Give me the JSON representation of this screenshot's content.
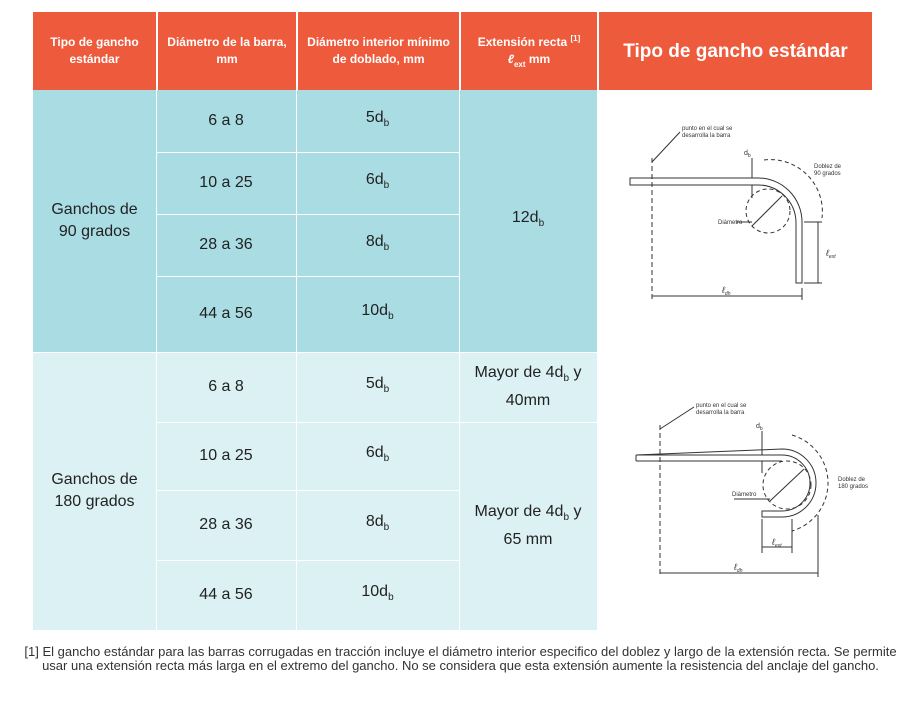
{
  "header": {
    "col1": "Tipo de gancho estándar",
    "col2": "Diámetro de la barra, mm",
    "col3": "Diámetro interior mínimo de doblado, mm",
    "col4_text": "Extensión recta",
    "col4_note": "[1]",
    "col4_sym": "ℓ",
    "col4_sub": "ext",
    "col4_unit": "mm",
    "col5": "Tipo de gancho estándar"
  },
  "groups": [
    {
      "label": "Ganchos de 90 grados",
      "rows": [
        {
          "bar": "6 a 8",
          "coef": "5",
          "sym": "d",
          "sub": "b"
        },
        {
          "bar": "10 a 25",
          "coef": "6",
          "sym": "d",
          "sub": "b"
        },
        {
          "bar": "28 a 36",
          "coef": "8",
          "sym": "d",
          "sub": "b"
        },
        {
          "bar": "44 a 56",
          "coef": "10",
          "sym": "d",
          "sub": "b"
        }
      ],
      "extension": {
        "pre": "12d",
        "sub": "b",
        "post": ""
      }
    },
    {
      "label": "Ganchos de 180 grados",
      "rows": [
        {
          "bar": "6 a 8",
          "coef": "5",
          "sym": "d",
          "sub": "b"
        },
        {
          "bar": "10 a 25",
          "coef": "6",
          "sym": "d",
          "sub": "b"
        },
        {
          "bar": "28 a 36",
          "coef": "8",
          "sym": "d",
          "sub": "b"
        },
        {
          "bar": "44 a 56",
          "coef": "10",
          "sym": "d",
          "sub": "b"
        }
      ],
      "extension_a": {
        "pre": "Mayor de 4d",
        "sub": "b",
        "post": " y 40mm"
      },
      "extension_b": {
        "pre": "Mayor de 4d",
        "sub": "b",
        "post": " y 65 mm"
      }
    }
  ],
  "diagram90": {
    "point_label_1": "punto en el cual se",
    "point_label_2": "desarrolla la barra",
    "db": "d",
    "db_sub": "b",
    "bend_label_1": "Doblez de",
    "bend_label_2": "90 grados",
    "diam_label": "Diámetro",
    "lext": "ℓ",
    "lext_sub": "ext",
    "ldh": "ℓ",
    "ldh_sub": "dh"
  },
  "diagram180": {
    "point_label_1": "punto en el cual se",
    "point_label_2": "desarrolla la barra",
    "db": "d",
    "db_sub": "b",
    "bend_label_1": "Doblez de",
    "bend_label_2": "180 grados",
    "diam_label": "Diámetro",
    "lext": "ℓ",
    "lext_sub": "ext",
    "ldh": "ℓ",
    "ldh_sub": "dh"
  },
  "footnote": "[1] El gancho estándar para las barras corrugadas en tracción incluye el diámetro interior especifico del doblez y largo de la extensión recta. Se permite usar una extensión recta más larga en el extremo del gancho. No se considera que esta extensión aumente la resistencia del anclaje del gancho.",
  "colors": {
    "header": "#ee5a3c",
    "group1": "#a9dde3",
    "group2": "#dcf1f4"
  }
}
